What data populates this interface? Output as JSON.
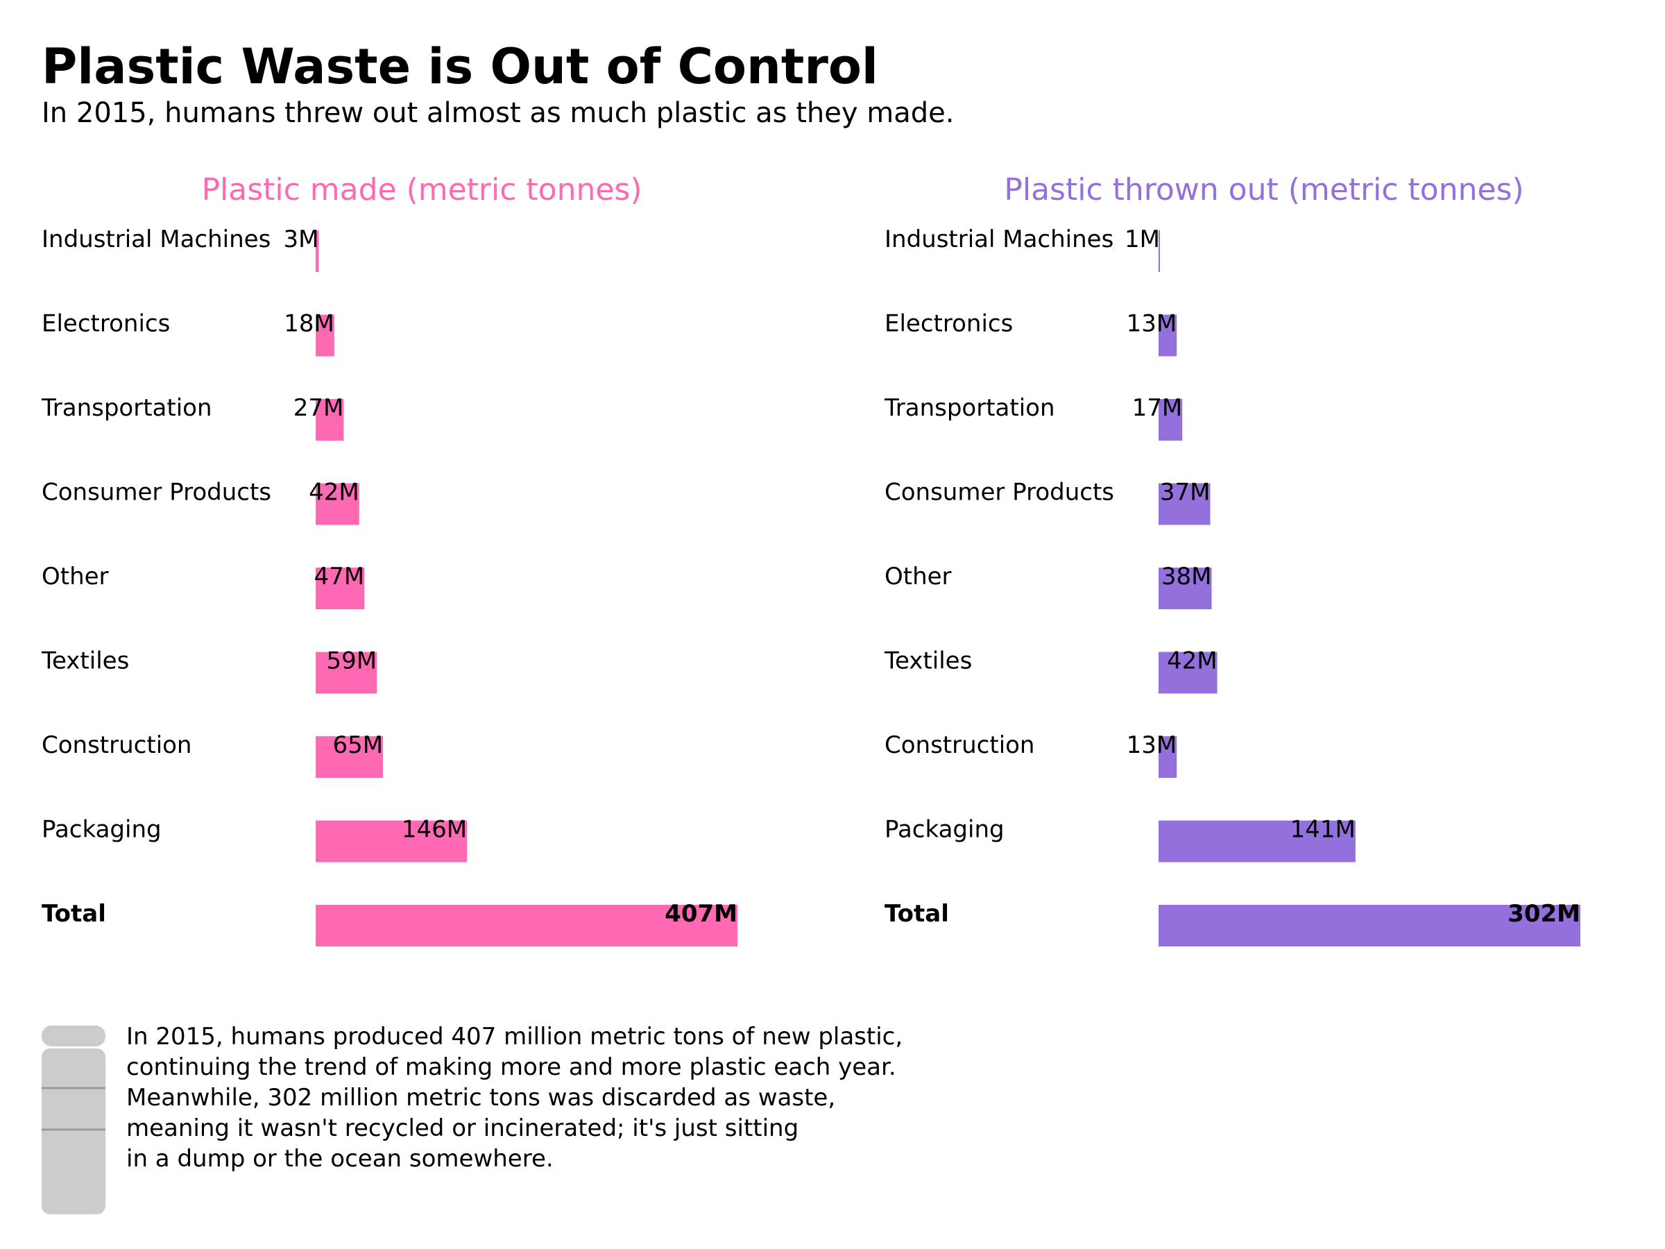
{
  "title": "Plastic Waste is Out of Control",
  "subtitle": "In 2015, humans threw out almost as much plastic as they made.",
  "note": {
    "lines": [
      "In 2015, humans produced 407 million metric tons of new plastic,",
      "continuing the trend of making more and more plastic each year.",
      "Meanwhile, 302 million metric tons was discarded as waste,",
      "meaning it wasn't recycled or incinerated; it's just sitting",
      "in a dump or the ocean somewhere."
    ],
    "icon": "bottle-icon"
  },
  "colors": {
    "made": "#ff69b4",
    "thrown": "#9370db",
    "icon": "#cccccc",
    "icon_line": "#999999"
  },
  "chart_data": [
    {
      "type": "bar",
      "orientation": "horizontal",
      "title": "Plastic made (metric tonnes)",
      "categories": [
        "Industrial Machines",
        "Electronics",
        "Transportation",
        "Consumer Products",
        "Other",
        "Textiles",
        "Construction",
        "Packaging",
        "Total"
      ],
      "values": [
        3,
        18,
        27,
        42,
        47,
        59,
        65,
        146,
        407
      ],
      "labels": [
        "3M",
        "18M",
        "27M",
        "42M",
        "47M",
        "59M",
        "65M",
        "146M",
        "407M"
      ],
      "bold_categories": [
        "Total"
      ],
      "xlim": [
        0,
        407
      ],
      "grid": false,
      "color": "#ff69b4"
    },
    {
      "type": "bar",
      "orientation": "horizontal",
      "title": "Plastic thrown out (metric tonnes)",
      "categories": [
        "Industrial Machines",
        "Electronics",
        "Transportation",
        "Consumer Products",
        "Other",
        "Textiles",
        "Construction",
        "Packaging",
        "Total"
      ],
      "values": [
        1,
        13,
        17,
        37,
        38,
        42,
        13,
        141,
        302
      ],
      "labels": [
        "1M",
        "13M",
        "17M",
        "37M",
        "38M",
        "42M",
        "13M",
        "141M",
        "302M"
      ],
      "bold_categories": [
        "Total"
      ],
      "xlim": [
        0,
        302
      ],
      "grid": false,
      "color": "#9370db"
    }
  ]
}
